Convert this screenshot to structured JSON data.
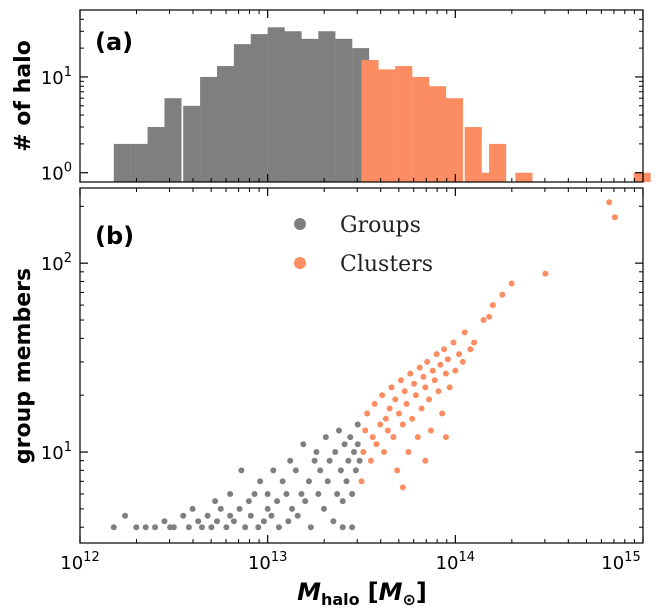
{
  "colors": {
    "groups": "#7f7f7f",
    "clusters": "#fc8d62"
  },
  "chart_data": [
    {
      "panel": "(a)",
      "type": "bar",
      "ylabel": "# of halo",
      "xscale": "log",
      "yscale": "log",
      "xlim": [
        1000000000000.0,
        1000000000000000.0
      ],
      "ylim": [
        0.8,
        50
      ],
      "yticks": [
        {
          "v": 1,
          "exp": "0"
        },
        {
          "v": 10,
          "exp": "1"
        }
      ],
      "bin_width_dex": 0.0909,
      "series": [
        {
          "name": "Groups",
          "bins": [
            {
              "log_m_lo": 12.18,
              "count": 2
            },
            {
              "log_m_lo": 12.27,
              "count": 2
            },
            {
              "log_m_lo": 12.36,
              "count": 3
            },
            {
              "log_m_lo": 12.45,
              "count": 6
            },
            {
              "log_m_lo": 12.55,
              "count": 5
            },
            {
              "log_m_lo": 12.64,
              "count": 10
            },
            {
              "log_m_lo": 12.73,
              "count": 13
            },
            {
              "log_m_lo": 12.82,
              "count": 22
            },
            {
              "log_m_lo": 12.91,
              "count": 28
            },
            {
              "log_m_lo": 13.0,
              "count": 33
            },
            {
              "log_m_lo": 13.09,
              "count": 30
            },
            {
              "log_m_lo": 13.18,
              "count": 25
            },
            {
              "log_m_lo": 13.27,
              "count": 30
            },
            {
              "log_m_lo": 13.36,
              "count": 25
            },
            {
              "log_m_lo": 13.45,
              "count": 20
            }
          ]
        },
        {
          "name": "Clusters",
          "bins": [
            {
              "log_m_lo": 13.5,
              "count": 15
            },
            {
              "log_m_lo": 13.59,
              "count": 12
            },
            {
              "log_m_lo": 13.68,
              "count": 13
            },
            {
              "log_m_lo": 13.77,
              "count": 10
            },
            {
              "log_m_lo": 13.86,
              "count": 8
            },
            {
              "log_m_lo": 13.95,
              "count": 6
            },
            {
              "log_m_lo": 14.05,
              "count": 3
            },
            {
              "log_m_lo": 14.14,
              "count": 1
            },
            {
              "log_m_lo": 14.18,
              "count": 2
            },
            {
              "log_m_lo": 14.32,
              "count": 1
            },
            {
              "log_m_lo": 14.95,
              "count": 1
            }
          ]
        }
      ]
    },
    {
      "panel": "(b)",
      "type": "scatter",
      "ylabel": "group members",
      "xlabel_main": "M",
      "xlabel_sub": "halo",
      "xlabel_unit_open": "[",
      "xlabel_unit_main": "M",
      "xlabel_unit_sub": "⊙",
      "xlabel_unit_close": "]",
      "xscale": "log",
      "yscale": "log",
      "xlim": [
        1000000000000.0,
        1000000000000000.0
      ],
      "ylim": [
        3.3,
        250
      ],
      "xticks": [
        {
          "v": 1000000000000.0,
          "exp": "12"
        },
        {
          "v": 10000000000000.0,
          "exp": "13"
        },
        {
          "v": 100000000000000.0,
          "exp": "14"
        },
        {
          "v": 1000000000000000.0,
          "exp": "15"
        }
      ],
      "yticks": [
        {
          "v": 10,
          "exp": "1"
        },
        {
          "v": 100,
          "exp": "2"
        }
      ],
      "legend": {
        "position": "upper-center",
        "entries": [
          "Groups",
          "Clusters"
        ]
      },
      "series": [
        {
          "name": "Groups",
          "points": [
            [
              12.18,
              4
            ],
            [
              12.24,
              4.6
            ],
            [
              12.3,
              4
            ],
            [
              12.35,
              4
            ],
            [
              12.4,
              4
            ],
            [
              12.45,
              4.3
            ],
            [
              12.48,
              4
            ],
            [
              12.5,
              4
            ],
            [
              12.55,
              4.6
            ],
            [
              12.58,
              4
            ],
            [
              12.6,
              5
            ],
            [
              12.63,
              4.3
            ],
            [
              12.65,
              4
            ],
            [
              12.68,
              4.6
            ],
            [
              12.7,
              4
            ],
            [
              12.72,
              5.5
            ],
            [
              12.73,
              4.3
            ],
            [
              12.75,
              5
            ],
            [
              12.78,
              4
            ],
            [
              12.8,
              4.6
            ],
            [
              12.8,
              6
            ],
            [
              12.82,
              4.3
            ],
            [
              12.85,
              5
            ],
            [
              12.86,
              8
            ],
            [
              12.88,
              4
            ],
            [
              12.9,
              5.5
            ],
            [
              12.91,
              4.6
            ],
            [
              12.93,
              6
            ],
            [
              12.95,
              4
            ],
            [
              12.96,
              7
            ],
            [
              12.98,
              4.3
            ],
            [
              13.0,
              5
            ],
            [
              13.0,
              6
            ],
            [
              13.02,
              4.6
            ],
            [
              13.03,
              8
            ],
            [
              13.05,
              5.5
            ],
            [
              13.06,
              4
            ],
            [
              13.08,
              7
            ],
            [
              13.1,
              6
            ],
            [
              13.11,
              4.3
            ],
            [
              13.12,
              9
            ],
            [
              13.13,
              5
            ],
            [
              13.15,
              8
            ],
            [
              13.16,
              4.6
            ],
            [
              13.18,
              6
            ],
            [
              13.19,
              11
            ],
            [
              13.2,
              5.5
            ],
            [
              13.22,
              7
            ],
            [
              13.23,
              4
            ],
            [
              13.25,
              9
            ],
            [
              13.26,
              10
            ],
            [
              13.27,
              6
            ],
            [
              13.28,
              8
            ],
            [
              13.3,
              5
            ],
            [
              13.31,
              12
            ],
            [
              13.32,
              7
            ],
            [
              13.33,
              9
            ],
            [
              13.35,
              4.3
            ],
            [
              13.36,
              10
            ],
            [
              13.37,
              6
            ],
            [
              13.38,
              13
            ],
            [
              13.39,
              8
            ],
            [
              13.4,
              5.5
            ],
            [
              13.41,
              11
            ],
            [
              13.42,
              7
            ],
            [
              13.43,
              9
            ],
            [
              13.44,
              12
            ],
            [
              13.45,
              6
            ],
            [
              13.46,
              10
            ],
            [
              13.47,
              8
            ],
            [
              13.48,
              11
            ],
            [
              13.48,
              14
            ],
            [
              13.49,
              9
            ],
            [
              13.45,
              4
            ],
            [
              13.4,
              4
            ]
          ]
        },
        {
          "name": "Clusters",
          "points": [
            [
              13.5,
              7
            ],
            [
              13.51,
              10
            ],
            [
              13.52,
              13
            ],
            [
              13.53,
              16
            ],
            [
              13.55,
              9
            ],
            [
              13.56,
              12
            ],
            [
              13.57,
              18
            ],
            [
              13.58,
              11
            ],
            [
              13.6,
              14
            ],
            [
              13.61,
              20
            ],
            [
              13.62,
              10
            ],
            [
              13.63,
              15
            ],
            [
              13.64,
              13
            ],
            [
              13.65,
              17
            ],
            [
              13.66,
              22
            ],
            [
              13.67,
              12
            ],
            [
              13.68,
              19
            ],
            [
              13.69,
              8
            ],
            [
              13.7,
              16
            ],
            [
              13.71,
              24
            ],
            [
              13.72,
              14
            ],
            [
              13.73,
              21
            ],
            [
              13.74,
              18
            ],
            [
              13.75,
              10
            ],
            [
              13.76,
              26
            ],
            [
              13.77,
              15
            ],
            [
              13.78,
              23
            ],
            [
              13.79,
              20
            ],
            [
              13.8,
              12
            ],
            [
              13.81,
              28
            ],
            [
              13.82,
              17
            ],
            [
              13.83,
              25
            ],
            [
              13.84,
              22
            ],
            [
              13.85,
              30
            ],
            [
              13.86,
              19
            ],
            [
              13.87,
              13
            ],
            [
              13.88,
              27
            ],
            [
              13.89,
              24
            ],
            [
              13.9,
              33
            ],
            [
              13.91,
              21
            ],
            [
              13.92,
              29
            ],
            [
              13.93,
              16
            ],
            [
              13.94,
              35
            ],
            [
              13.95,
              26
            ],
            [
              13.96,
              31
            ],
            [
              13.97,
              22
            ],
            [
              13.99,
              38
            ],
            [
              14.0,
              27
            ],
            [
              14.02,
              33
            ],
            [
              14.04,
              30
            ],
            [
              14.05,
              43
            ],
            [
              14.08,
              35
            ],
            [
              14.1,
              38
            ],
            [
              14.15,
              50
            ],
            [
              14.18,
              52
            ],
            [
              14.2,
              60
            ],
            [
              14.25,
              68
            ],
            [
              14.3,
              78
            ],
            [
              14.48,
              88
            ],
            [
              14.82,
              210
            ],
            [
              14.85,
              175
            ],
            [
              13.72,
              6.5
            ],
            [
              13.84,
              9
            ],
            [
              13.95,
              12
            ]
          ]
        }
      ]
    }
  ]
}
